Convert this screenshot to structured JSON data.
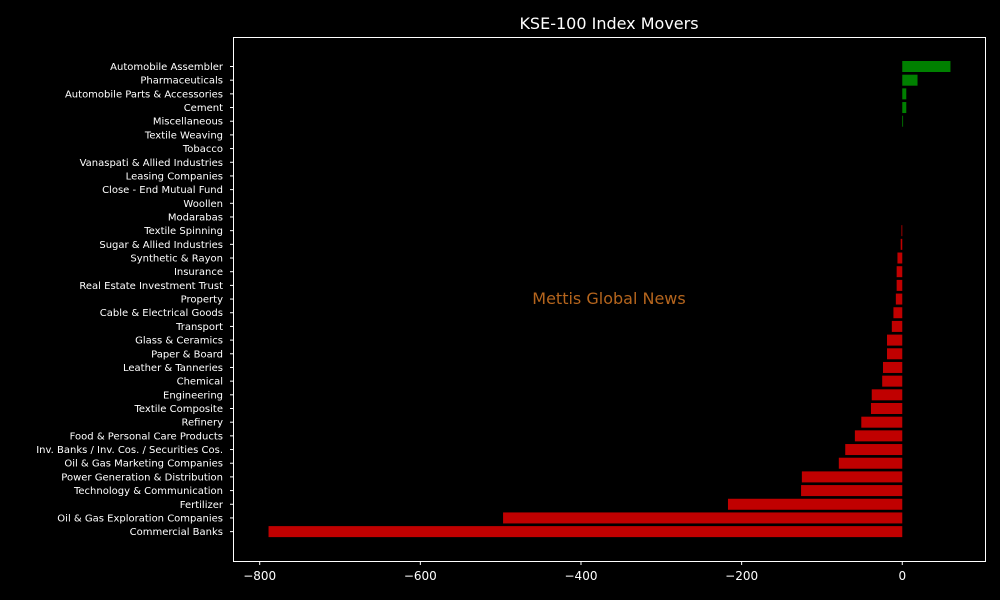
{
  "chart_data": {
    "type": "bar",
    "orientation": "horizontal",
    "title": "KSE-100 Index Movers",
    "watermark": "Mettis Global News",
    "xlabel": "",
    "ylabel": "",
    "xlim": [
      -832,
      103
    ],
    "xticks": [
      -800,
      -600,
      -400,
      -200,
      0
    ],
    "xtick_labels": [
      "−800",
      "−600",
      "−400",
      "−200",
      "0"
    ],
    "grid": false,
    "colors": {
      "positive": "#008000",
      "negative": "#c00000",
      "background": "#000000",
      "text": "#ffffff",
      "watermark": "#b5651d"
    },
    "categories": [
      "Automobile Assembler",
      "Pharmaceuticals",
      "Automobile Parts & Accessories",
      "Cement",
      "Miscellaneous",
      "Textile Weaving",
      "Tobacco",
      "Vanaspati & Allied Industries",
      "Leasing Companies",
      "Close - End Mutual Fund",
      "Woollen",
      "Modarabas",
      "Textile Spinning",
      "Sugar & Allied Industries",
      "Synthetic & Rayon",
      "Insurance",
      "Real Estate Investment Trust",
      "Property",
      "Cable & Electrical Goods",
      "Transport",
      "Glass & Ceramics",
      "Paper & Board",
      "Leather & Tanneries",
      "Chemical",
      "Engineering",
      "Textile Composite",
      "Refinery",
      "Food & Personal Care Products",
      "Inv. Banks / Inv. Cos. / Securities Cos.",
      "Oil & Gas Marketing Companies",
      "Power Generation & Distribution",
      "Technology & Communication",
      "Fertilizer",
      "Oil & Gas Exploration Companies",
      "Commercial Banks"
    ],
    "values": [
      60,
      19,
      5,
      5,
      1,
      0,
      0,
      0,
      0,
      0,
      0,
      0,
      -1,
      -2,
      -6,
      -7,
      -7,
      -8,
      -11,
      -13,
      -19,
      -19,
      -24,
      -25,
      -38,
      -39,
      -51,
      -59,
      -71,
      -79,
      -125,
      -126,
      -217,
      -497,
      -789
    ]
  }
}
